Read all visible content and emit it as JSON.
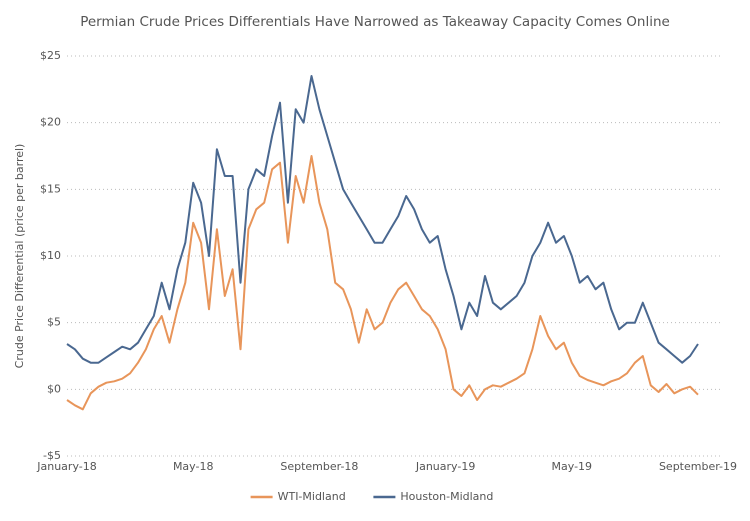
{
  "chart_data": {
    "type": "line",
    "title": "Permian Crude Prices Differentials Have Narrowed as Takeaway Capacity Comes Online",
    "y_label": "Crude Price Differential (price per barrel)",
    "categories": [
      "January-18",
      null,
      null,
      null,
      null,
      null,
      null,
      null,
      null,
      null,
      null,
      null,
      null,
      null,
      null,
      null,
      "May-18",
      null,
      null,
      null,
      null,
      null,
      null,
      null,
      null,
      null,
      null,
      null,
      null,
      null,
      null,
      null,
      "September-18",
      null,
      null,
      null,
      null,
      null,
      null,
      null,
      null,
      null,
      null,
      null,
      null,
      null,
      null,
      null,
      "January-19",
      null,
      null,
      null,
      null,
      null,
      null,
      null,
      null,
      null,
      null,
      null,
      null,
      null,
      null,
      null,
      "May-19",
      null,
      null,
      null,
      null,
      null,
      null,
      null,
      null,
      null,
      null,
      null,
      null,
      null,
      null,
      null,
      "September-19"
    ],
    "series": [
      {
        "name": "WTI-Midland",
        "color": "#e8955a",
        "values": [
          -0.8,
          -1.2,
          -1.5,
          -0.3,
          0.2,
          0.5,
          0.6,
          0.8,
          1.2,
          2,
          3,
          4.5,
          5.5,
          3.5,
          6,
          8,
          12.5,
          11,
          6,
          12,
          7,
          9,
          3,
          12,
          13.5,
          14,
          16.5,
          17,
          11,
          16,
          14,
          17.5,
          14,
          12,
          8,
          7.5,
          6,
          3.5,
          6,
          4.5,
          5,
          6.5,
          7.5,
          8,
          7,
          6,
          5.5,
          4.5,
          3,
          0,
          -0.5,
          0.3,
          -0.8,
          0,
          0.3,
          0.2,
          0.5,
          0.8,
          1.2,
          3,
          5.5,
          4,
          3,
          3.5,
          2,
          1,
          0.7,
          0.5,
          0.3,
          0.6,
          0.8,
          1.2,
          2,
          2.5,
          0.3,
          -0.2,
          0.4,
          -0.3,
          0,
          0.2,
          -0.4
        ]
      },
      {
        "name": "Houston-Midland",
        "color": "#4a6890",
        "values": [
          3.4,
          3,
          2.3,
          2,
          2,
          2.4,
          2.8,
          3.2,
          3,
          3.5,
          4.5,
          5.5,
          8,
          6,
          9,
          11,
          15.5,
          14,
          10,
          18,
          16,
          16,
          8,
          15,
          16.5,
          16,
          19,
          21.5,
          14,
          21,
          20,
          23.5,
          21,
          19,
          17,
          15,
          14,
          13,
          12,
          11,
          11,
          12,
          13,
          14.5,
          13.5,
          12,
          11,
          11.5,
          9,
          7,
          4.5,
          6.5,
          5.5,
          8.5,
          6.5,
          6,
          6.5,
          7,
          8,
          10,
          11,
          12.5,
          11,
          11.5,
          10,
          8,
          8.5,
          7.5,
          8,
          6,
          4.5,
          5,
          5,
          6.5,
          5,
          3.5,
          3,
          2.5,
          2,
          2.5,
          3.4
        ]
      }
    ],
    "ylim": [
      -5,
      25
    ],
    "yticks": [
      {
        "value": -5,
        "label": "-$5"
      },
      {
        "value": 0,
        "label": "$0"
      },
      {
        "value": 5,
        "label": "$5"
      },
      {
        "value": 10,
        "label": "$10"
      },
      {
        "value": 15,
        "label": "$15"
      },
      {
        "value": 20,
        "label": "$20"
      },
      {
        "value": 25,
        "label": "$25"
      }
    ],
    "grid": true,
    "legend": "bottom"
  }
}
